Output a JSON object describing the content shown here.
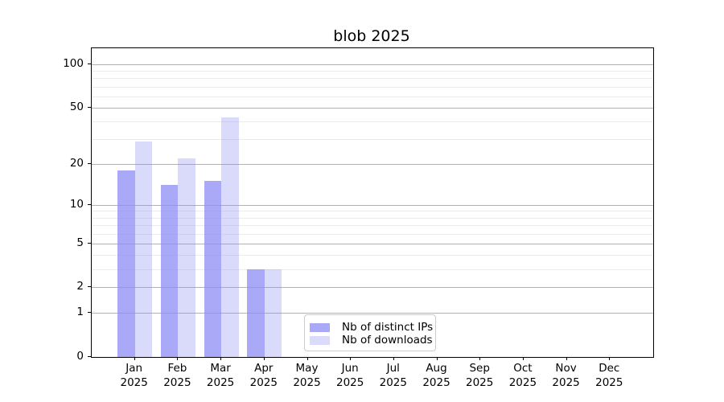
{
  "title": "blob 2025",
  "legend": {
    "items": [
      {
        "label": "Nb of distinct IPs",
        "color": "rgba(140,140,244,0.75)"
      },
      {
        "label": "Nb of downloads",
        "color": "rgba(140,140,244,0.32)"
      }
    ]
  },
  "chart_data": {
    "type": "bar",
    "title": "blob 2025",
    "categories": [
      "Jan 2025",
      "Feb 2025",
      "Mar 2025",
      "Apr 2025",
      "May 2025",
      "Jun 2025",
      "Jul 2025",
      "Aug 2025",
      "Sep 2025",
      "Oct 2025",
      "Nov 2025",
      "Dec 2025"
    ],
    "series": [
      {
        "name": "Nb of distinct IPs",
        "values": [
          18,
          14,
          15,
          3,
          0,
          0,
          0,
          0,
          0,
          0,
          0,
          0
        ]
      },
      {
        "name": "Nb of downloads",
        "values": [
          29,
          22,
          43,
          3,
          0,
          0,
          0,
          0,
          0,
          0,
          0,
          0
        ]
      }
    ],
    "xlabel": "",
    "ylabel": "",
    "y_scale": "log10(value+1)",
    "y_ticks": [
      0,
      1,
      2,
      5,
      10,
      20,
      50,
      100
    ],
    "y_minor_ticks": [
      3,
      4,
      6,
      7,
      8,
      9,
      30,
      40,
      60,
      70,
      80,
      90
    ],
    "ylim": [
      0,
      130
    ],
    "grid": "horizontal",
    "legend_position": "lower center",
    "bar_colors": [
      "rgba(140,140,244,0.75)",
      "rgba(140,140,244,0.32)"
    ],
    "grid_major_color": "#b2b2b2",
    "grid_minor_color": "#ebebeb"
  }
}
